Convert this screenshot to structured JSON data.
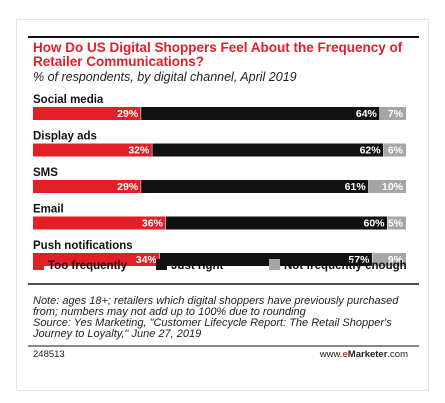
{
  "chart_data": {
    "type": "bar",
    "orientation": "horizontal",
    "stacked": true,
    "title": "How Do US Digital Shoppers Feel About the Frequency of Retailer Communications?",
    "subtitle": "% of respondents, by digital channel, April 2019",
    "categories": [
      "Social media",
      "Display ads",
      "SMS",
      "Email",
      "Push notifications"
    ],
    "series": [
      {
        "name": "Too frequently",
        "color": "#e21e26",
        "values": [
          29,
          32,
          29,
          36,
          34
        ],
        "labels": [
          "29%",
          "32%",
          "29%",
          "36%",
          "34%"
        ]
      },
      {
        "name": "Just right",
        "color": "#111111",
        "values": [
          64,
          62,
          61,
          60,
          57
        ],
        "labels": [
          "64%",
          "62%",
          "61%",
          "60%",
          "57%"
        ]
      },
      {
        "name": "Not frequently enough",
        "color": "#a6a6a6",
        "values": [
          7,
          6,
          10,
          5,
          9
        ],
        "labels": [
          "7%",
          "6%",
          "10%",
          "5%",
          "9%"
        ]
      }
    ],
    "legend_position": "bottom",
    "grid": false
  },
  "footer": {
    "note_line1": "Note: ages 18+; retailers which digital shoppers have previously purchased",
    "note_line2": "from; numbers may not add up to 100% due to rounding",
    "source_line1": "Source: Yes Marketing, \"Customer Lifecycle Report: The Retail Shopper's",
    "source_line2": "Journey to Loyalty,\" June 27, 2019",
    "chart_id": "248513",
    "brand_prefix": "www.",
    "brand_e": "e",
    "brand_name": "Marketer",
    "brand_suffix": ".com"
  }
}
